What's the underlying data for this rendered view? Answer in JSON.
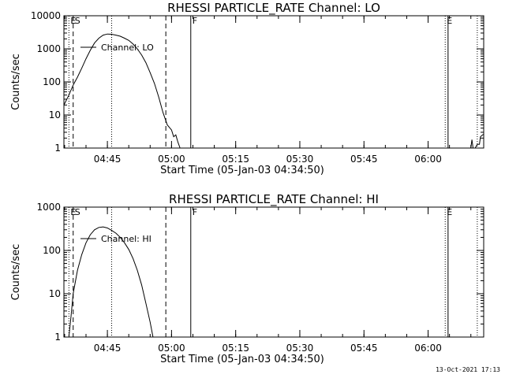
{
  "footer": {
    "timestamp": "13-Oct-2021 17:13"
  },
  "chart_data": [
    {
      "type": "line",
      "title": "RHESSI PARTICLE_RATE Channel: LO",
      "xlabel": "Start Time (05-Jan-03 04:34:50)",
      "ylabel": "Counts/sec",
      "yscale": "log",
      "ylim": [
        1,
        10000
      ],
      "yticks": [
        "1",
        "10",
        "100",
        "1000",
        "10000"
      ],
      "xlim": [
        "04:34:50",
        "06:13:00"
      ],
      "xticks": [
        "04:45",
        "05:00",
        "05:15",
        "05:30",
        "05:45",
        "06:00"
      ],
      "legend": {
        "label": "Channel: LO",
        "placement": "top-left"
      },
      "event_markers": [
        {
          "label": "E",
          "time": "04:36:00",
          "style": "dotted"
        },
        {
          "label": "S",
          "time": "04:37:00",
          "style": "dashed"
        },
        {
          "time": "04:46:00",
          "style": "dotted"
        },
        {
          "time": "04:58:40",
          "style": "dashed"
        },
        {
          "label": "F",
          "time": "05:04:30",
          "style": "solid"
        },
        {
          "label": "E",
          "time": "06:04:00",
          "style": "dotted"
        },
        {
          "time": "06:04:40",
          "style": "solid"
        },
        {
          "time": "06:11:30",
          "style": "dotted"
        }
      ],
      "series": [
        {
          "name": "Channel: LO",
          "segments": [
            [
              [
                "04:34:50",
                20
              ],
              [
                "04:36:00",
                40
              ],
              [
                "04:37:00",
                80
              ],
              [
                "04:38:00",
                140
              ],
              [
                "04:39:00",
                260
              ],
              [
                "04:40:00",
                500
              ],
              [
                "04:41:00",
                900
              ],
              [
                "04:42:00",
                1500
              ],
              [
                "04:43:00",
                2100
              ],
              [
                "04:44:00",
                2600
              ],
              [
                "04:45:00",
                2800
              ],
              [
                "04:46:00",
                2750
              ],
              [
                "04:47:00",
                2600
              ],
              [
                "04:48:00",
                2400
              ],
              [
                "04:49:00",
                2100
              ],
              [
                "04:50:00",
                1800
              ],
              [
                "04:51:00",
                1400
              ],
              [
                "04:52:00",
                1000
              ],
              [
                "04:53:00",
                650
              ],
              [
                "04:54:00",
                380
              ],
              [
                "04:55:00",
                190
              ],
              [
                "04:56:00",
                90
              ],
              [
                "04:57:00",
                35
              ],
              [
                "04:58:00",
                12
              ],
              [
                "04:59:00",
                5
              ],
              [
                "05:00:00",
                3.5
              ],
              [
                "05:00:30",
                2.2
              ],
              [
                "05:01:00",
                2.5
              ],
              [
                "05:01:30",
                1.5
              ],
              [
                "05:02:00",
                1
              ]
            ],
            [
              [
                "06:10:00",
                1
              ],
              [
                "06:10:15",
                1.8
              ],
              [
                "06:10:30",
                1
              ],
              [
                "06:11:00",
                1
              ],
              [
                "06:11:30",
                1.3
              ],
              [
                "06:12:00",
                1.3
              ],
              [
                "06:12:15",
                2.2
              ],
              [
                "06:12:45",
                2.5
              ],
              [
                "06:13:00",
                2.6
              ]
            ]
          ]
        }
      ]
    },
    {
      "type": "line",
      "title": "RHESSI PARTICLE_RATE Channel: HI",
      "xlabel": "Start Time (05-Jan-03 04:34:50)",
      "ylabel": "Counts/sec",
      "yscale": "log",
      "ylim": [
        1,
        1000
      ],
      "yticks": [
        "1",
        "10",
        "100",
        "1000"
      ],
      "xlim": [
        "04:34:50",
        "06:13:00"
      ],
      "xticks": [
        "04:45",
        "05:00",
        "05:15",
        "05:30",
        "05:45",
        "06:00"
      ],
      "legend": {
        "label": "Channel: HI",
        "placement": "top-left"
      },
      "event_markers": [
        {
          "label": "E",
          "time": "04:36:00",
          "style": "dotted"
        },
        {
          "label": "S",
          "time": "04:37:00",
          "style": "dashed"
        },
        {
          "time": "04:46:00",
          "style": "dotted"
        },
        {
          "time": "04:58:40",
          "style": "dashed"
        },
        {
          "label": "F",
          "time": "05:04:30",
          "style": "solid"
        },
        {
          "label": "E",
          "time": "06:04:00",
          "style": "dotted"
        },
        {
          "time": "06:04:40",
          "style": "solid"
        },
        {
          "time": "06:11:30",
          "style": "dotted"
        }
      ],
      "series": [
        {
          "name": "Channel: HI",
          "segments": [
            [
              [
                "04:36:00",
                1
              ],
              [
                "04:36:30",
                3
              ],
              [
                "04:37:00",
                10
              ],
              [
                "04:38:00",
                35
              ],
              [
                "04:39:00",
                80
              ],
              [
                "04:40:00",
                150
              ],
              [
                "04:41:00",
                230
              ],
              [
                "04:42:00",
                300
              ],
              [
                "04:43:00",
                340
              ],
              [
                "04:44:00",
                350
              ],
              [
                "04:45:00",
                330
              ],
              [
                "04:46:00",
                290
              ],
              [
                "04:47:00",
                250
              ],
              [
                "04:48:00",
                200
              ],
              [
                "04:49:00",
                150
              ],
              [
                "04:50:00",
                105
              ],
              [
                "04:51:00",
                65
              ],
              [
                "04:52:00",
                35
              ],
              [
                "04:53:00",
                16
              ],
              [
                "04:54:00",
                6
              ],
              [
                "04:55:00",
                2.2
              ],
              [
                "04:55:40",
                1
              ]
            ]
          ]
        }
      ]
    }
  ]
}
